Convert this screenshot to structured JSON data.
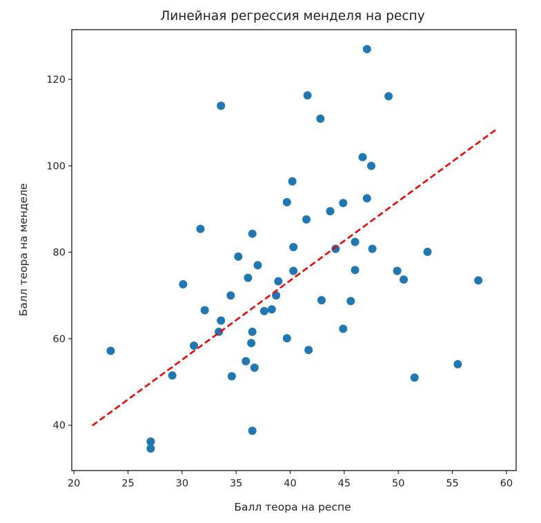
{
  "chart_data": {
    "type": "scatter",
    "title": "Линейная регрессия менделя на респу",
    "xlabel": "Балл теора на респе",
    "ylabel": "Балл теора на менделе",
    "xlim": [
      19.8,
      60.9
    ],
    "ylim": [
      29.5,
      131.5
    ],
    "xticks": [
      20,
      25,
      30,
      35,
      40,
      45,
      50,
      55,
      60
    ],
    "yticks": [
      40,
      60,
      80,
      100,
      120
    ],
    "grid": false,
    "point_color": "#1f77b4",
    "points": [
      [
        23.4,
        57.2
      ],
      [
        27.1,
        36.2
      ],
      [
        27.1,
        34.6
      ],
      [
        29.1,
        51.5
      ],
      [
        30.1,
        72.6
      ],
      [
        31.1,
        58.4
      ],
      [
        31.7,
        85.4
      ],
      [
        32.1,
        66.6
      ],
      [
        33.4,
        61.6
      ],
      [
        33.6,
        64.2
      ],
      [
        33.6,
        113.9
      ],
      [
        34.5,
        70.0
      ],
      [
        34.6,
        51.3
      ],
      [
        35.2,
        79.0
      ],
      [
        35.9,
        54.8
      ],
      [
        36.1,
        74.1
      ],
      [
        36.4,
        59.0
      ],
      [
        36.5,
        61.6
      ],
      [
        36.5,
        84.3
      ],
      [
        36.5,
        38.7
      ],
      [
        36.7,
        53.3
      ],
      [
        37.0,
        77.0
      ],
      [
        37.6,
        66.4
      ],
      [
        38.3,
        66.8
      ],
      [
        38.7,
        70.0
      ],
      [
        38.9,
        73.3
      ],
      [
        39.7,
        60.1
      ],
      [
        39.7,
        91.6
      ],
      [
        40.2,
        96.4
      ],
      [
        40.3,
        81.2
      ],
      [
        40.3,
        75.7
      ],
      [
        41.5,
        87.6
      ],
      [
        41.6,
        116.3
      ],
      [
        41.7,
        57.4
      ],
      [
        42.8,
        110.9
      ],
      [
        42.9,
        68.9
      ],
      [
        43.7,
        89.5
      ],
      [
        44.2,
        80.8
      ],
      [
        44.9,
        91.4
      ],
      [
        44.9,
        62.3
      ],
      [
        45.6,
        68.7
      ],
      [
        46.0,
        82.4
      ],
      [
        46.0,
        75.9
      ],
      [
        46.7,
        102.0
      ],
      [
        47.1,
        92.5
      ],
      [
        47.1,
        127.0
      ],
      [
        47.5,
        100.0
      ],
      [
        47.6,
        80.8
      ],
      [
        49.1,
        116.1
      ],
      [
        49.9,
        75.7
      ],
      [
        50.5,
        73.7
      ],
      [
        51.5,
        51.0
      ],
      [
        52.7,
        80.1
      ],
      [
        55.5,
        54.1
      ],
      [
        57.4,
        73.5
      ]
    ],
    "regression_line": {
      "color": "#ff0000",
      "style": "dashed",
      "x": [
        21.7,
        59.1
      ],
      "y": [
        39.9,
        108.5
      ]
    }
  }
}
